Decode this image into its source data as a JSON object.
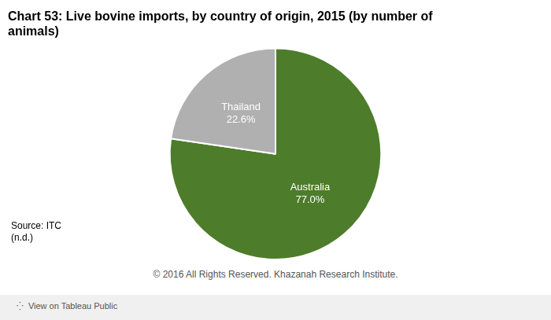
{
  "chart_data": {
    "type": "pie",
    "title": "Chart 53: Live bovine imports, by country of origin, 2015 (by number of\nanimals)",
    "categories": [
      "Australia",
      "Thailand"
    ],
    "values": [
      77.0,
      22.6
    ],
    "value_labels": [
      "77.0%",
      "22.6%"
    ],
    "colors": [
      "#4d7c2a",
      "#b0b0b0"
    ],
    "data_labels": true,
    "legend": false,
    "annotations": [
      "Source: ITC\n(n.d.)",
      "© 2016 All Rights Reserved. Khazanah Research Institute.",
      "⁛  View on Tableau Public"
    ]
  }
}
